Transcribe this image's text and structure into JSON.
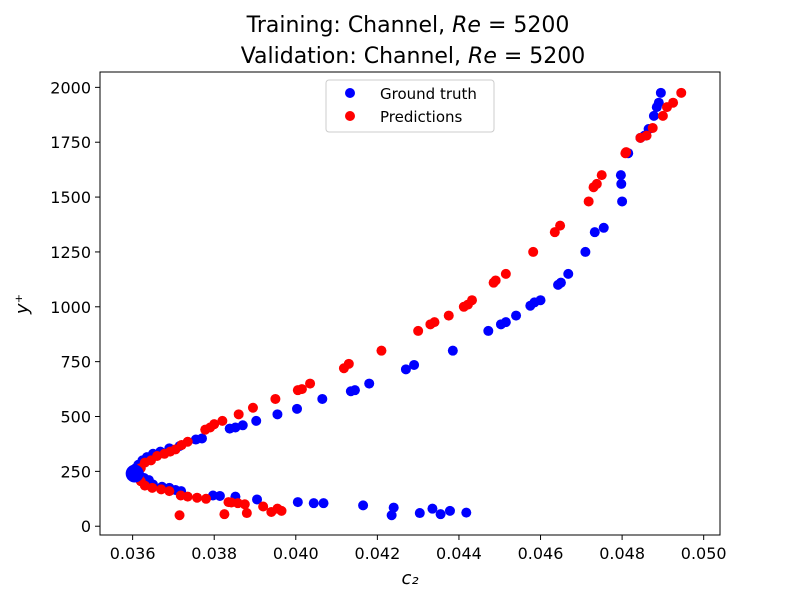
{
  "chart_data": {
    "type": "scatter",
    "title_line1": "Training: Channel, Re = 5200",
    "title_line2": "Validation: Channel, Re = 5200",
    "xlabel": "c₂",
    "ylabel": "y⁺",
    "xlim": [
      0.0352,
      0.0504
    ],
    "ylim": [
      -40,
      2070
    ],
    "xticks": [
      0.036,
      0.038,
      0.04,
      0.042,
      0.044,
      0.046,
      0.048,
      0.05
    ],
    "xtick_labels": [
      "0.036",
      "0.038",
      "0.040",
      "0.042",
      "0.044",
      "0.046",
      "0.048",
      "0.050"
    ],
    "yticks": [
      0,
      250,
      500,
      750,
      1000,
      1250,
      1500,
      1750,
      2000
    ],
    "ytick_labels": [
      "0",
      "250",
      "500",
      "750",
      "1000",
      "1250",
      "1500",
      "1750",
      "2000"
    ],
    "grid": false,
    "legend_position": "top-center",
    "series": [
      {
        "name": "Ground truth",
        "color": "#0000ff",
        "x": [
          0.04235,
          0.04355,
          0.04378,
          0.04418,
          0.04304,
          0.04335,
          0.0424,
          0.04165,
          0.04068,
          0.04044,
          0.04005,
          0.03905,
          0.03852,
          0.03814,
          0.03797,
          0.03719,
          0.03705,
          0.0369,
          0.03672,
          0.0365,
          0.0364,
          0.03628,
          0.03618,
          0.0361,
          0.03604,
          0.03608,
          0.03614,
          0.03624,
          0.03635,
          0.0365,
          0.03668,
          0.0369,
          0.03715,
          0.03755,
          0.0377,
          0.03838,
          0.03852,
          0.0387,
          0.03903,
          0.03955,
          0.04003,
          0.04065,
          0.04135,
          0.04145,
          0.0418,
          0.0427,
          0.0429,
          0.04385,
          0.04472,
          0.04503,
          0.04515,
          0.0454,
          0.04575,
          0.04585,
          0.046,
          0.04643,
          0.0465,
          0.04668,
          0.0471,
          0.04733,
          0.04755,
          0.048,
          0.04798,
          0.04797,
          0.04815,
          0.04845,
          0.04855,
          0.04865,
          0.04878,
          0.04885,
          0.0489,
          0.04895
        ],
        "y": [
          50,
          55,
          70,
          62,
          60,
          80,
          85,
          95,
          105,
          105,
          110,
          122,
          135,
          138,
          140,
          160,
          165,
          175,
          180,
          190,
          210,
          220,
          230,
          240,
          250,
          265,
          280,
          300,
          315,
          330,
          340,
          355,
          365,
          395,
          400,
          445,
          450,
          460,
          480,
          510,
          535,
          580,
          615,
          620,
          650,
          715,
          735,
          800,
          890,
          920,
          930,
          960,
          1005,
          1020,
          1030,
          1100,
          1110,
          1150,
          1250,
          1340,
          1360,
          1480,
          1560,
          1600,
          1700,
          1770,
          1780,
          1810,
          1870,
          1910,
          1930,
          1975
        ]
      },
      {
        "name": "Predictions",
        "color": "#ff0000",
        "x": [
          0.03715,
          0.03825,
          0.0388,
          0.0394,
          0.03965,
          0.03955,
          0.0392,
          0.03875,
          0.03858,
          0.03842,
          0.03835,
          0.0378,
          0.03758,
          0.03735,
          0.03718,
          0.0369,
          0.0367,
          0.03648,
          0.0363,
          0.0362,
          0.03615,
          0.03612,
          0.03615,
          0.0362,
          0.0363,
          0.03645,
          0.0366,
          0.03678,
          0.03692,
          0.03705,
          0.0372,
          0.03735,
          0.03778,
          0.0379,
          0.038,
          0.0382,
          0.0386,
          0.03895,
          0.0395,
          0.04005,
          0.04015,
          0.04035,
          0.04118,
          0.0413,
          0.0421,
          0.043,
          0.0433,
          0.0434,
          0.04375,
          0.04412,
          0.04422,
          0.04432,
          0.04485,
          0.0449,
          0.04515,
          0.04582,
          0.04635,
          0.04648,
          0.04718,
          0.0473,
          0.04738,
          0.0475,
          0.04808,
          0.0481,
          0.04845,
          0.0486,
          0.04875,
          0.049,
          0.0491,
          0.04925,
          0.04945
        ],
        "y": [
          50,
          55,
          60,
          65,
          70,
          80,
          90,
          100,
          105,
          108,
          110,
          125,
          130,
          135,
          140,
          160,
          168,
          175,
          185,
          205,
          220,
          240,
          255,
          265,
          290,
          300,
          320,
          330,
          340,
          350,
          370,
          385,
          440,
          450,
          465,
          480,
          510,
          540,
          580,
          620,
          625,
          650,
          720,
          740,
          800,
          890,
          920,
          930,
          960,
          1000,
          1010,
          1030,
          1110,
          1120,
          1150,
          1250,
          1340,
          1370,
          1480,
          1545,
          1560,
          1600,
          1700,
          1705,
          1770,
          1780,
          1815,
          1870,
          1910,
          1930,
          1975
        ]
      }
    ],
    "emphasized_point": {
      "x": 0.03605,
      "y": 240,
      "color": "#0000ff"
    }
  }
}
